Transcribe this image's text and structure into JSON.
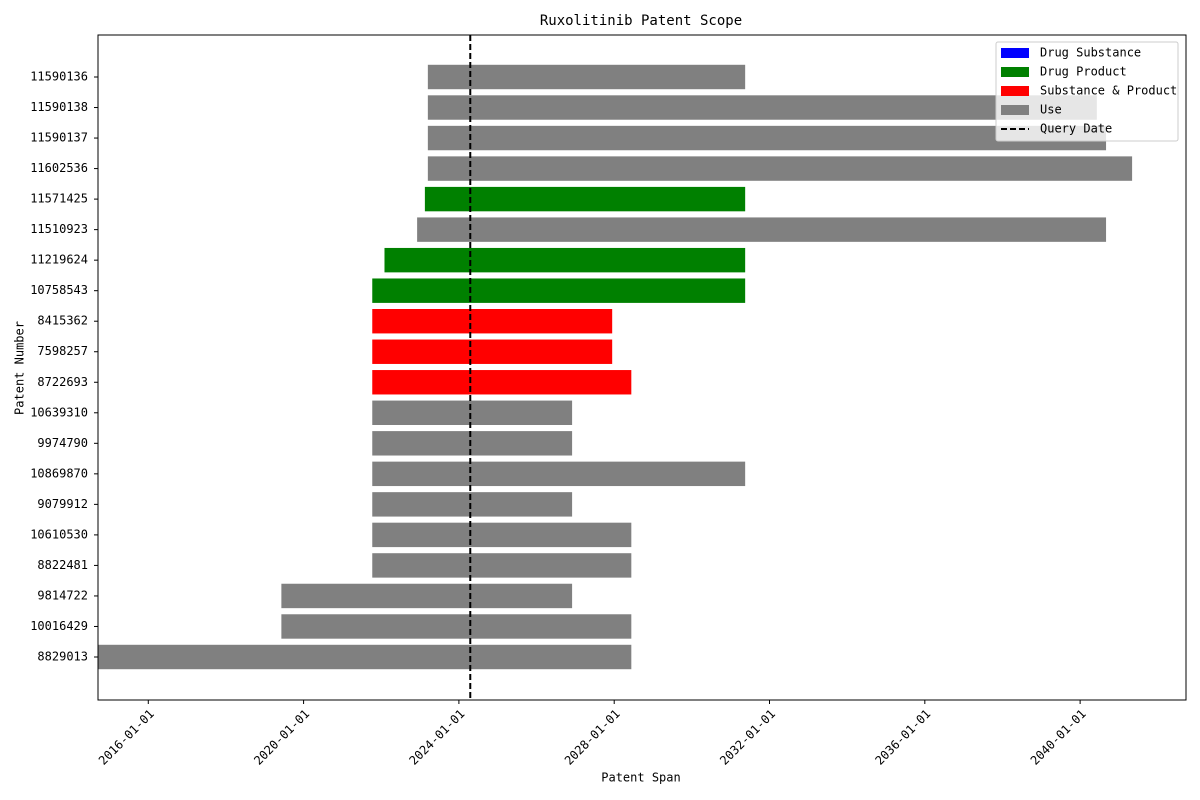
{
  "chart_data": {
    "type": "gantt",
    "title": "Ruxolitinib Patent Scope",
    "x_label": "Patent Span",
    "y_label": "Patent Number",
    "categories": [
      "11590136",
      "11590138",
      "11590137",
      "11602536",
      "11571425",
      "11510923",
      "11219624",
      "10758543",
      "8415362",
      "7598257",
      "8722693",
      "10639310",
      "9974790",
      "10869870",
      "9079912",
      "10610530",
      "8822481",
      "9814722",
      "10016429",
      "8829013"
    ],
    "series": [
      {
        "name": "Drug Substance",
        "color": "#0000ff",
        "values": [
          null,
          null,
          null,
          null,
          null,
          null,
          null,
          null,
          null,
          null,
          null,
          null,
          null,
          null,
          null,
          null,
          null,
          null,
          null,
          null
        ]
      },
      {
        "name": "Drug Product",
        "color": "#008000",
        "values": [
          null,
          null,
          null,
          null,
          [
            "2023-02-15",
            "2031-05-17"
          ],
          null,
          [
            "2022-01-31",
            "2031-05-17"
          ],
          [
            "2021-10-08",
            "2031-05-17"
          ],
          null,
          null,
          null,
          null,
          null,
          null,
          null,
          null,
          null,
          null,
          null,
          null
        ]
      },
      {
        "name": "Substance & Product",
        "color": "#ff0000",
        "values": [
          null,
          null,
          null,
          null,
          null,
          null,
          null,
          null,
          [
            "2021-10-08",
            "2027-12-13"
          ],
          [
            "2021-10-08",
            "2027-12-13"
          ],
          [
            "2021-10-08",
            "2028-06-10"
          ],
          null,
          null,
          null,
          null,
          null,
          null,
          null,
          null,
          null
        ]
      },
      {
        "name": "Use",
        "color": "#808080",
        "values": [
          [
            "2023-03-15",
            "2031-05-17"
          ],
          [
            "2023-03-15",
            "2040-06-06"
          ],
          [
            "2023-03-15",
            "2040-09-01"
          ],
          [
            "2023-03-15",
            "2041-05-04"
          ],
          null,
          [
            "2022-12-04",
            "2040-09-01"
          ],
          null,
          null,
          null,
          null,
          null,
          [
            "2021-10-08",
            "2026-12-01"
          ],
          [
            "2021-10-08",
            "2026-12-01"
          ],
          [
            "2021-10-08",
            "2031-05-17"
          ],
          [
            "2021-10-08",
            "2026-12-01"
          ],
          [
            "2021-10-08",
            "2028-06-10"
          ],
          [
            "2021-10-08",
            "2028-06-10"
          ],
          [
            "2019-06-06",
            "2026-12-01"
          ],
          [
            "2019-06-06",
            "2028-06-10"
          ],
          [
            "2014-09-15",
            "2028-06-10"
          ]
        ]
      }
    ],
    "vline": {
      "name": "Query Date",
      "value": "2024-04-17",
      "color": "#000000",
      "dashed": true
    },
    "xlim": [
      "2014-09-15",
      "2042-09-23"
    ],
    "xticks": [
      "2016-01-01",
      "2020-01-01",
      "2024-01-01",
      "2028-01-01",
      "2032-01-01",
      "2036-01-01",
      "2040-01-01"
    ],
    "legend": "upper right",
    "grid": false
  }
}
